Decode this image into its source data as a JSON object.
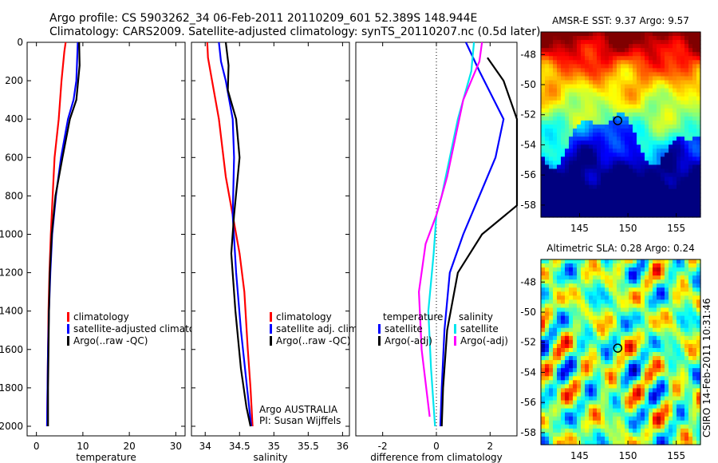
{
  "header": {
    "line1": "Argo profile: CS 5903262_34 06-Feb-2011 20110209_601 52.389S 148.944E",
    "line2": "Climatology: CARS2009. Satellite-adjusted climatology: synTS_20110207.nc (0.5d later)"
  },
  "side_text": "CSIRO 14-Feb-2011 10:31:46",
  "chart_data": [
    {
      "type": "line",
      "name": "temperature-panel",
      "xlabel": "temperature",
      "ylabel": "",
      "xlim": [
        -2,
        32
      ],
      "ylim": [
        2050,
        0
      ],
      "xticks": [
        0,
        10,
        20,
        30
      ],
      "yticks": [
        0,
        200,
        400,
        600,
        800,
        1000,
        1200,
        1400,
        1600,
        1800,
        2000
      ],
      "legend": [
        "climatology",
        "satellite-adjusted climatology",
        "Argo(..raw -QC)"
      ],
      "series": [
        {
          "name": "climatology",
          "color": "#ff0000",
          "points": [
            [
              6.3,
              0
            ],
            [
              6.0,
              50
            ],
            [
              5.4,
              200
            ],
            [
              4.8,
              400
            ],
            [
              3.9,
              600
            ],
            [
              3.5,
              800
            ],
            [
              3.1,
              1000
            ],
            [
              2.8,
              1200
            ],
            [
              2.6,
              1400
            ],
            [
              2.5,
              1600
            ],
            [
              2.4,
              1800
            ],
            [
              2.3,
              2000
            ]
          ]
        },
        {
          "name": "satellite-adjusted climatology",
          "color": "#0000ff",
          "points": [
            [
              8.9,
              0
            ],
            [
              8.6,
              200
            ],
            [
              8.0,
              300
            ],
            [
              6.8,
              400
            ],
            [
              5.3,
              600
            ],
            [
              4.2,
              800
            ],
            [
              3.4,
              1000
            ],
            [
              3.0,
              1200
            ],
            [
              2.7,
              1400
            ],
            [
              2.5,
              1600
            ],
            [
              2.4,
              1800
            ],
            [
              2.3,
              2000
            ]
          ]
        },
        {
          "name": "Argo(..raw -QC)",
          "color": "#000000",
          "points": [
            [
              9.2,
              0
            ],
            [
              9.3,
              120
            ],
            [
              8.6,
              300
            ],
            [
              7.2,
              400
            ],
            [
              5.6,
              600
            ],
            [
              4.1,
              800
            ],
            [
              3.3,
              1000
            ],
            [
              2.9,
              1200
            ],
            [
              2.7,
              1400
            ],
            [
              2.6,
              1600
            ],
            [
              2.5,
              1800
            ],
            [
              2.5,
              2000
            ]
          ]
        }
      ]
    },
    {
      "type": "line",
      "name": "salinity-panel",
      "xlabel": "salinity",
      "ylabel": "",
      "xlim": [
        33.8,
        36.1
      ],
      "ylim": [
        2050,
        0
      ],
      "xticks": [
        34,
        34.5,
        35,
        35.5,
        36
      ],
      "yticks": [
        0,
        200,
        400,
        600,
        800,
        1000,
        1200,
        1400,
        1600,
        1800,
        2000
      ],
      "legend": [
        "climatology",
        "satellite adj. clim.",
        "Argo(..raw -QC)"
      ],
      "annotations": [
        "Argo AUSTRALIA",
        "PI: Susan Wijffels"
      ],
      "series": [
        {
          "name": "climatology",
          "color": "#ff0000",
          "points": [
            [
              34.03,
              0
            ],
            [
              34.04,
              80
            ],
            [
              34.1,
              200
            ],
            [
              34.2,
              400
            ],
            [
              34.3,
              700
            ],
            [
              34.4,
              900
            ],
            [
              34.5,
              1100
            ],
            [
              34.57,
              1300
            ],
            [
              34.62,
              1600
            ],
            [
              34.66,
              1800
            ],
            [
              34.69,
              2000
            ]
          ]
        },
        {
          "name": "satellite adj. clim.",
          "color": "#0000ff",
          "points": [
            [
              34.2,
              0
            ],
            [
              34.23,
              100
            ],
            [
              34.3,
              200
            ],
            [
              34.4,
              400
            ],
            [
              34.42,
              600
            ],
            [
              34.4,
              900
            ],
            [
              34.45,
              1200
            ],
            [
              34.52,
              1500
            ],
            [
              34.61,
              1800
            ],
            [
              34.67,
              2000
            ]
          ]
        },
        {
          "name": "Argo(..raw -QC)",
          "color": "#000000",
          "points": [
            [
              34.3,
              0
            ],
            [
              34.34,
              120
            ],
            [
              34.33,
              250
            ],
            [
              34.45,
              400
            ],
            [
              34.5,
              600
            ],
            [
              34.42,
              900
            ],
            [
              34.38,
              1100
            ],
            [
              34.44,
              1400
            ],
            [
              34.52,
              1700
            ],
            [
              34.6,
              1900
            ],
            [
              34.66,
              2000
            ]
          ]
        }
      ]
    },
    {
      "type": "line",
      "name": "difference-panel",
      "xlabel": "difference from climatology",
      "ylabel": "",
      "xlim": [
        -3,
        3
      ],
      "ylim": [
        2050,
        0
      ],
      "xticks": [
        -2,
        0,
        2
      ],
      "yticks": [],
      "legend": [
        "temperature",
        "satellite",
        "Argo(-adj)",
        "salinity",
        "satellite",
        "Argo(-adj)"
      ],
      "series": [
        {
          "name": "temperature satellite",
          "color": "#0000ff",
          "points": [
            [
              1.1,
              0
            ],
            [
              1.6,
              150
            ],
            [
              2.5,
              400
            ],
            [
              2.2,
              600
            ],
            [
              1.6,
              800
            ],
            [
              1.0,
              1000
            ],
            [
              0.5,
              1200
            ],
            [
              0.3,
              1500
            ],
            [
              0.2,
              1800
            ],
            [
              0.15,
              2000
            ]
          ]
        },
        {
          "name": "temperature Argo(-adj)",
          "color": "#000000",
          "points": [
            [
              1.9,
              80
            ],
            [
              2.5,
              200
            ],
            [
              3.0,
              400
            ],
            [
              3.0,
              600
            ],
            [
              3.0,
              850
            ],
            [
              1.7,
              1000
            ],
            [
              0.8,
              1200
            ],
            [
              0.4,
              1500
            ],
            [
              0.25,
              1800
            ],
            [
              0.2,
              2000
            ]
          ]
        },
        {
          "name": "salinity satellite",
          "color": "#00e5ee",
          "points": [
            [
              1.4,
              0
            ],
            [
              1.3,
              150
            ],
            [
              0.8,
              400
            ],
            [
              0.5,
              600
            ],
            [
              0.2,
              800
            ],
            [
              0,
              900
            ],
            [
              -0.1,
              1100
            ],
            [
              -0.3,
              1400
            ],
            [
              -0.2,
              1700
            ],
            [
              -0.05,
              2000
            ]
          ]
        },
        {
          "name": "salinity Argo(-adj)",
          "color": "#ff00ff",
          "points": [
            [
              1.7,
              0
            ],
            [
              1.6,
              100
            ],
            [
              1.0,
              300
            ],
            [
              0.7,
              500
            ],
            [
              0.4,
              700
            ],
            [
              0,
              900
            ],
            [
              -0.4,
              1050
            ],
            [
              -0.65,
              1300
            ],
            [
              -0.55,
              1600
            ],
            [
              -0.25,
              1950
            ]
          ]
        }
      ]
    },
    {
      "type": "heatmap",
      "name": "sst-map",
      "title": "AMSR-E SST: 9.37 Argo: 9.57",
      "xticks": [
        145,
        150,
        155
      ],
      "yticks": [
        -48,
        -50,
        -52,
        -54,
        -56,
        -58
      ],
      "xlim": [
        141,
        157.5
      ],
      "ylim": [
        -58.8,
        -46.5
      ],
      "marker": [
        148.944,
        -52.389
      ]
    },
    {
      "type": "heatmap",
      "name": "sla-map",
      "title": "Altimetric SLA: 0.28 Argo: 0.24",
      "xticks": [
        145,
        150,
        155
      ],
      "yticks": [
        -48,
        -50,
        -52,
        -54,
        -56,
        -58
      ],
      "xlim": [
        141,
        157.5
      ],
      "ylim": [
        -58.8,
        -46.5
      ],
      "marker": [
        148.944,
        -52.389
      ]
    }
  ]
}
